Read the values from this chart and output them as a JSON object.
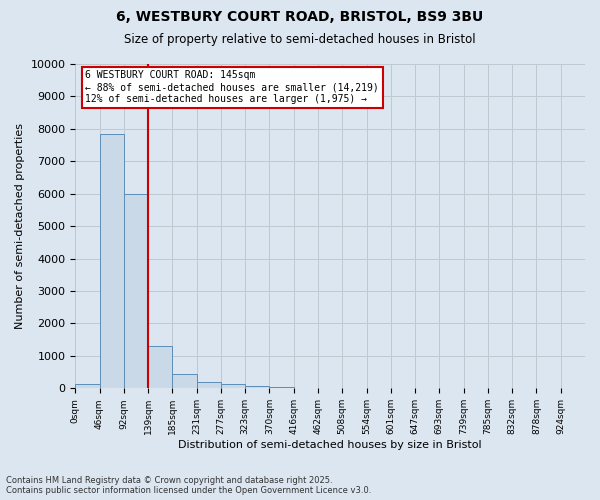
{
  "title_line1": "6, WESTBURY COURT ROAD, BRISTOL, BS9 3BU",
  "title_line2": "Size of property relative to semi-detached houses in Bristol",
  "xlabel": "Distribution of semi-detached houses by size in Bristol",
  "ylabel": "Number of semi-detached properties",
  "bin_labels": [
    "0sqm",
    "46sqm",
    "92sqm",
    "139sqm",
    "185sqm",
    "231sqm",
    "277sqm",
    "323sqm",
    "370sqm",
    "416sqm",
    "462sqm",
    "508sqm",
    "554sqm",
    "601sqm",
    "647sqm",
    "693sqm",
    "739sqm",
    "785sqm",
    "832sqm",
    "878sqm",
    "924sqm"
  ],
  "bar_values": [
    130,
    7850,
    6000,
    1300,
    450,
    200,
    120,
    70,
    40,
    0,
    0,
    0,
    0,
    0,
    0,
    0,
    0,
    0,
    0,
    0,
    0
  ],
  "bar_color": "#c9d9e8",
  "bar_edgecolor": "#5b8db8",
  "property_line_x": 3.0,
  "annotation_line1": "6 WESTBURY COURT ROAD: 145sqm",
  "annotation_line2": "← 88% of semi-detached houses are smaller (14,219)",
  "annotation_line3": "12% of semi-detached houses are larger (1,975) →",
  "vline_color": "#cc0000",
  "annotation_box_color": "#cc0000",
  "grid_color": "#c0c8d0",
  "bg_color": "#dce6f0",
  "ylim": [
    0,
    10000
  ],
  "yticks": [
    0,
    1000,
    2000,
    3000,
    4000,
    5000,
    6000,
    7000,
    8000,
    9000,
    10000
  ],
  "footer_line1": "Contains HM Land Registry data © Crown copyright and database right 2025.",
  "footer_line2": "Contains public sector information licensed under the Open Government Licence v3.0."
}
